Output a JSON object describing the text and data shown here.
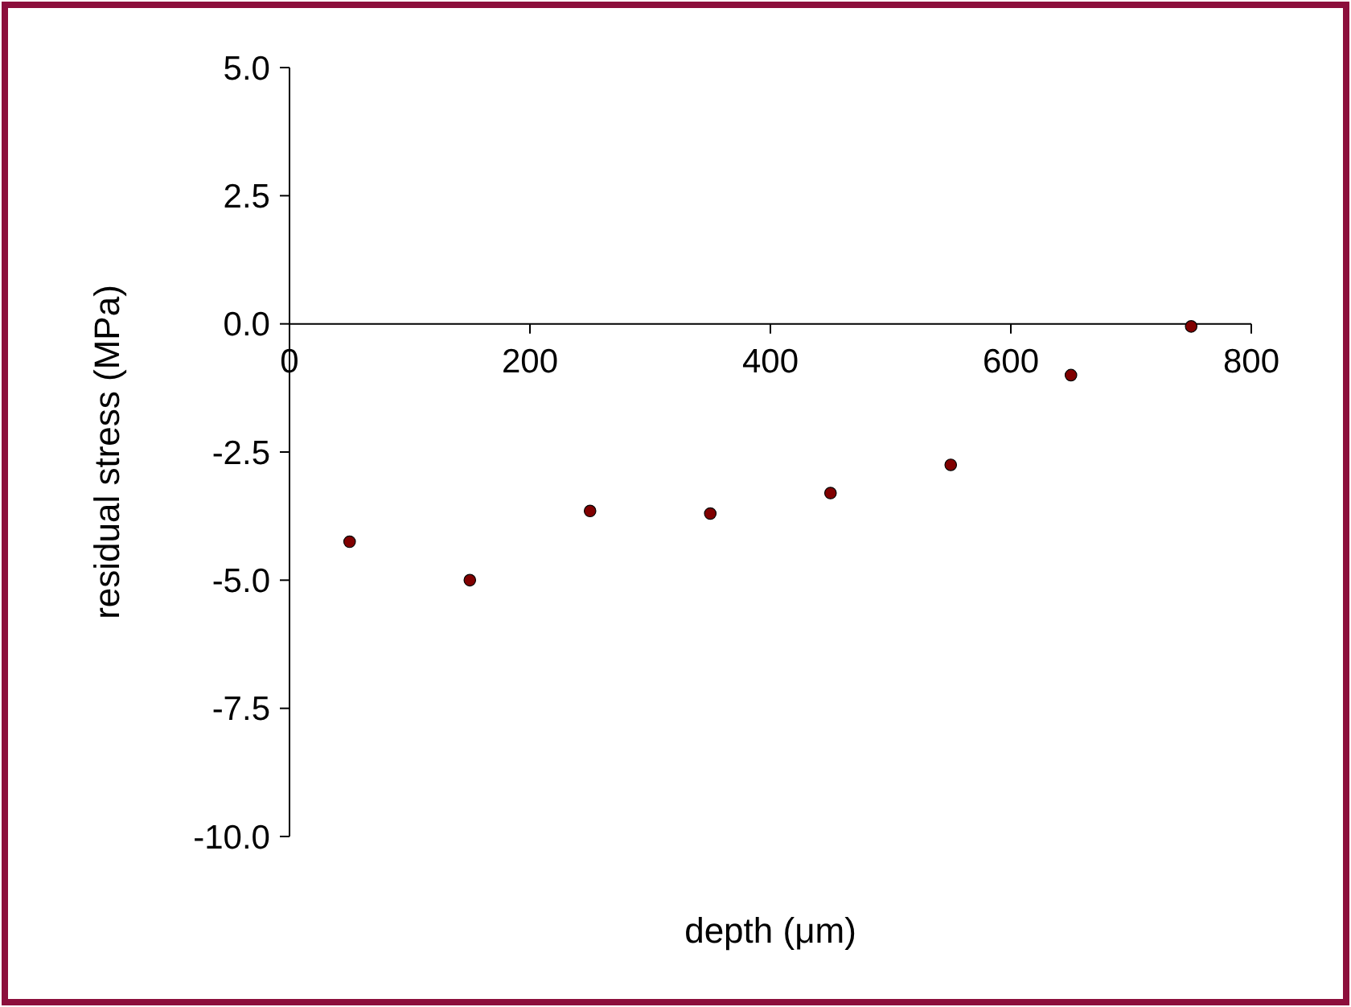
{
  "chart_data": {
    "type": "scatter",
    "xlabel": "depth (μm)",
    "ylabel": "residual stress (MPa)",
    "x": [
      50,
      150,
      250,
      350,
      450,
      550,
      650,
      750
    ],
    "series": [
      {
        "color": "#800000",
        "values": [
          -4.25,
          -5.0,
          -3.65,
          -3.7,
          -3.3,
          -2.75,
          -1.0,
          -0.05
        ]
      }
    ],
    "xlim": [
      0,
      800
    ],
    "xticks": [
      0,
      200,
      400,
      600,
      800
    ],
    "ylim": [
      -10,
      5
    ],
    "yticks": [
      {
        "value": 5,
        "label": "5.0"
      },
      {
        "value": 2.5,
        "label": "2.5"
      },
      {
        "value": 0,
        "label": "0.0"
      },
      {
        "value": -2.5,
        "label": "-2.5"
      },
      {
        "value": -5,
        "label": "-5.0"
      },
      {
        "value": -7.5,
        "label": "-7.5"
      },
      {
        "value": -10,
        "label": "-10.0"
      }
    ],
    "grid": false,
    "marker": "circle"
  }
}
